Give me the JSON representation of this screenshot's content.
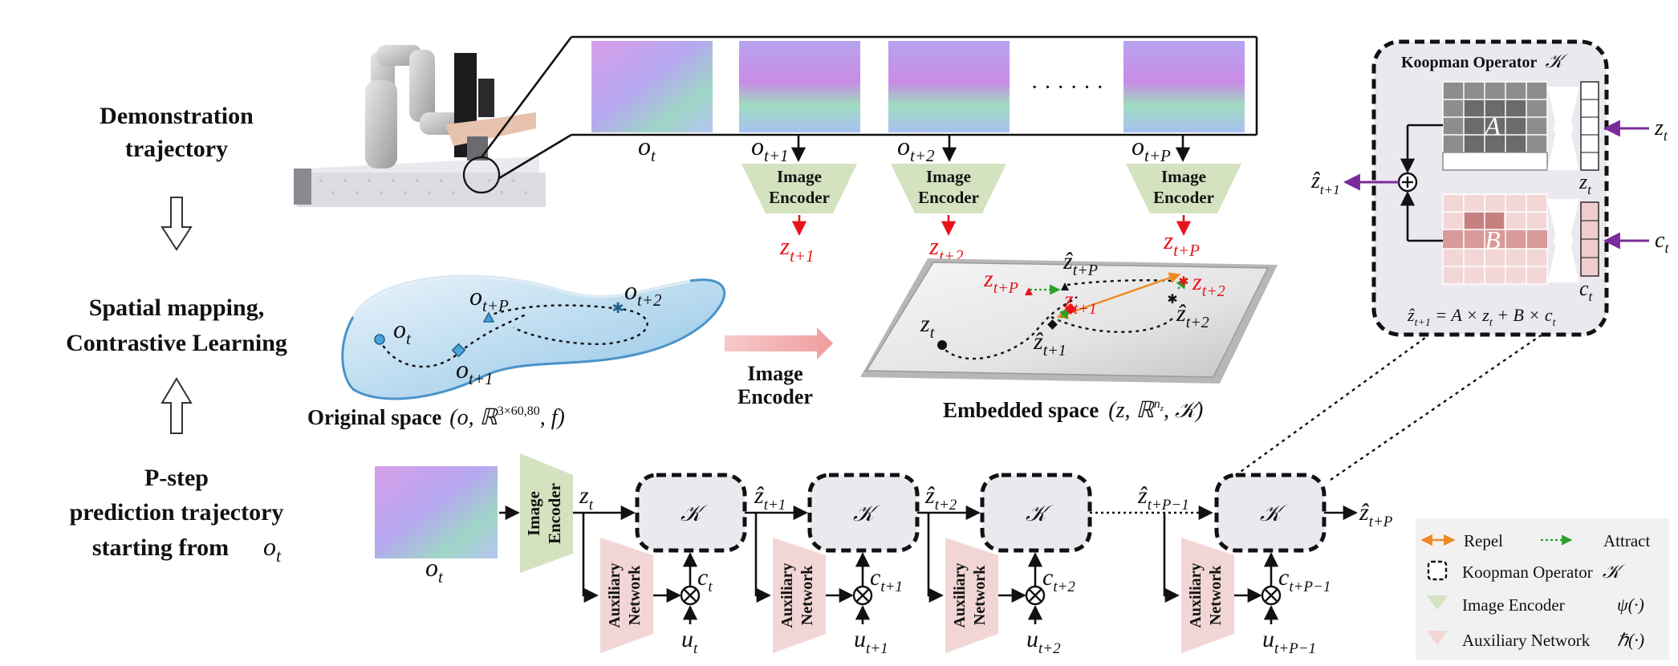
{
  "left_column": {
    "stage1_line1": "Demonstration",
    "stage1_line2": "trajectory",
    "stage2_line1": "Spatial mapping,",
    "stage2_line2": "Contrastive Learning",
    "stage3_line1": "P-step",
    "stage3_line2": "prediction trajectory",
    "stage3_line3": "starting from"
  },
  "top_row": {
    "obs": [
      "o",
      "o",
      "o",
      "o"
    ],
    "obs_sub": [
      "t",
      "t+1",
      "t+2",
      "t+P"
    ],
    "ellipsis": "· · · · · ·",
    "encoder_line1": "Image",
    "encoder_line2": "Encoder",
    "z_labels": [
      "z",
      "z",
      "z"
    ],
    "z_sub": [
      "t+1",
      "t+2",
      "t+P"
    ]
  },
  "original_space": {
    "caption_bold": "Original space",
    "caption_tuple": "(o, ℝ",
    "caption_sup": "3×60,80",
    "caption_end": ", f)",
    "points": [
      "o",
      "o",
      "o",
      "o"
    ],
    "points_sub": [
      "t",
      "t+1",
      "t+2",
      "t+P"
    ]
  },
  "middle_encoder": {
    "line1": "Image",
    "line2": "Encoder"
  },
  "embedded_space": {
    "caption_bold": "Embedded space",
    "caption_tuple": "(z, ℝ",
    "caption_sup": "n",
    "caption_sup_sub": "z",
    "caption_end": ", 𝒦)",
    "zt": "z",
    "zt_sub": "t",
    "zhat": [
      "ẑ",
      "ẑ",
      "ẑ"
    ],
    "zhat_sub": [
      "t+1",
      "t+P",
      "t+2"
    ],
    "zred": [
      "z",
      "z",
      "z"
    ],
    "zred_sub": [
      "t+P",
      "t+1",
      "t+2"
    ]
  },
  "koopman_panel": {
    "title": "Koopman Operator",
    "symbol": "𝒦",
    "matrix_A": "A",
    "matrix_B": "B",
    "in_z": "z",
    "in_z_sub": "t",
    "in_c": "c",
    "in_c_sub": "t",
    "vec_z": "z",
    "vec_z_sub": "t",
    "vec_c": "c",
    "vec_c_sub": "t",
    "out": "ẑ",
    "out_sub": "t+1",
    "equation": "ẑ",
    "equation_sub": "t+1",
    "equation_rest": " = A × z",
    "equation_rest_sub": "t",
    "equation_rest2": " + B × c",
    "equation_rest2_sub": "t"
  },
  "bottom_row": {
    "obs": "o",
    "obs_sub": "t",
    "encoder_line1": "Image",
    "encoder_line2": "Encoder",
    "aux_line1": "Auxiliary",
    "aux_line2": "Network",
    "k_symbol": "𝒦",
    "state_labels": [
      "z",
      "ẑ",
      "ẑ",
      "ẑ",
      "ẑ"
    ],
    "state_sub": [
      "t",
      "t+1",
      "t+2",
      "t+P−1",
      "t+P"
    ],
    "c_labels": [
      "c",
      "c",
      "c",
      "c"
    ],
    "c_sub": [
      "t",
      "t+1",
      "t+2",
      "t+P−1"
    ],
    "u_labels": [
      "u",
      "u",
      "u",
      "u"
    ],
    "u_sub": [
      "t",
      "t+1",
      "t+2",
      "t+P−1"
    ]
  },
  "legend": {
    "repel": "Repel",
    "attract": "Attract",
    "koopman": "Koopman Operator",
    "koopman_sym": "𝒦",
    "encoder": "Image Encoder",
    "encoder_sym": "ψ(·)",
    "aux": "Auxiliary Network",
    "aux_sym": "ℏ(·)"
  },
  "colors": {
    "red": "#e8141c",
    "purple": "#7a2c9a",
    "orange": "#f08a24",
    "green": "#2ca02c",
    "encoder_fill": "#d4e2c0",
    "aux_fill": "#f2d6d6"
  }
}
